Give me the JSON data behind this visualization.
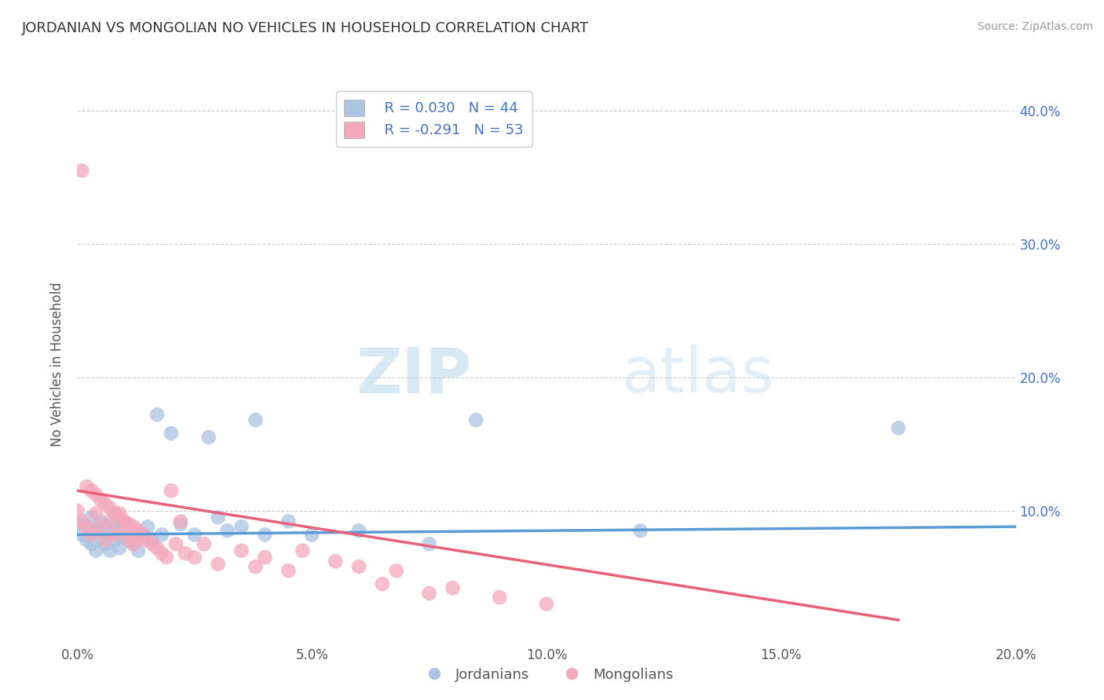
{
  "title": "JORDANIAN VS MONGOLIAN NO VEHICLES IN HOUSEHOLD CORRELATION CHART",
  "source": "Source: ZipAtlas.com",
  "ylabel": "No Vehicles in Household",
  "xlim": [
    0.0,
    0.2
  ],
  "ylim": [
    0.0,
    0.42
  ],
  "xtick_labels": [
    "0.0%",
    "",
    "5.0%",
    "",
    "10.0%",
    "",
    "15.0%",
    "",
    "20.0%"
  ],
  "xtick_vals": [
    0.0,
    0.025,
    0.05,
    0.075,
    0.1,
    0.125,
    0.15,
    0.175,
    0.2
  ],
  "ytick_labels": [
    "10.0%",
    "20.0%",
    "30.0%",
    "40.0%"
  ],
  "ytick_vals": [
    0.1,
    0.2,
    0.3,
    0.4
  ],
  "legend_r1": "R = 0.030",
  "legend_n1": "N = 44",
  "legend_r2": "R = -0.291",
  "legend_n2": "N = 53",
  "color_jordan": "#aac4e2",
  "color_mongol": "#f4a8bc",
  "color_jordan_line": "#5b9bd5",
  "color_mongol_line": "#e8607a",
  "jordan_line_x": [
    0.0,
    0.2
  ],
  "jordan_line_y": [
    0.082,
    0.088
  ],
  "mongol_line_x": [
    0.0,
    0.175
  ],
  "mongol_line_y": [
    0.115,
    0.018
  ],
  "jordan_scatter_x": [
    0.001,
    0.001,
    0.002,
    0.002,
    0.003,
    0.003,
    0.004,
    0.004,
    0.005,
    0.005,
    0.006,
    0.006,
    0.007,
    0.007,
    0.008,
    0.008,
    0.009,
    0.009,
    0.01,
    0.01,
    0.011,
    0.012,
    0.013,
    0.014,
    0.015,
    0.016,
    0.017,
    0.018,
    0.02,
    0.022,
    0.025,
    0.028,
    0.03,
    0.032,
    0.035,
    0.038,
    0.04,
    0.045,
    0.05,
    0.06,
    0.075,
    0.085,
    0.12,
    0.175
  ],
  "jordan_scatter_y": [
    0.082,
    0.09,
    0.078,
    0.088,
    0.075,
    0.095,
    0.07,
    0.085,
    0.08,
    0.092,
    0.075,
    0.088,
    0.07,
    0.082,
    0.078,
    0.09,
    0.072,
    0.085,
    0.08,
    0.092,
    0.078,
    0.075,
    0.07,
    0.082,
    0.088,
    0.078,
    0.172,
    0.082,
    0.158,
    0.09,
    0.082,
    0.155,
    0.095,
    0.085,
    0.088,
    0.168,
    0.082,
    0.092,
    0.082,
    0.085,
    0.075,
    0.168,
    0.085,
    0.162
  ],
  "mongol_scatter_x": [
    0.0,
    0.001,
    0.001,
    0.002,
    0.002,
    0.003,
    0.003,
    0.004,
    0.004,
    0.005,
    0.005,
    0.006,
    0.006,
    0.007,
    0.007,
    0.008,
    0.008,
    0.009,
    0.009,
    0.01,
    0.01,
    0.011,
    0.011,
    0.012,
    0.012,
    0.013,
    0.013,
    0.014,
    0.015,
    0.016,
    0.017,
    0.018,
    0.019,
    0.02,
    0.021,
    0.022,
    0.023,
    0.025,
    0.027,
    0.03,
    0.035,
    0.038,
    0.04,
    0.045,
    0.048,
    0.055,
    0.06,
    0.065,
    0.068,
    0.075,
    0.08,
    0.09,
    0.1
  ],
  "mongol_scatter_y": [
    0.1,
    0.355,
    0.092,
    0.118,
    0.088,
    0.115,
    0.082,
    0.112,
    0.098,
    0.108,
    0.088,
    0.105,
    0.078,
    0.102,
    0.092,
    0.098,
    0.082,
    0.095,
    0.098,
    0.092,
    0.085,
    0.09,
    0.078,
    0.088,
    0.075,
    0.085,
    0.078,
    0.082,
    0.078,
    0.075,
    0.072,
    0.068,
    0.065,
    0.115,
    0.075,
    0.092,
    0.068,
    0.065,
    0.075,
    0.06,
    0.07,
    0.058,
    0.065,
    0.055,
    0.07,
    0.062,
    0.058,
    0.045,
    0.055,
    0.038,
    0.042,
    0.035,
    0.03
  ]
}
